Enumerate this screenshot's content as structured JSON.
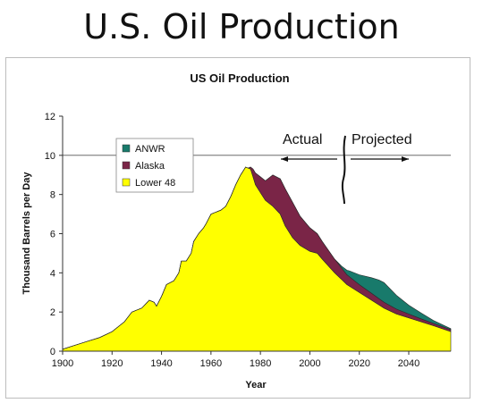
{
  "slide": {
    "title": "U.S. Oil Production"
  },
  "chart_data": {
    "type": "area",
    "stacked": true,
    "title": "US Oil Production",
    "xlabel": "Year",
    "ylabel": "Thousand Barrels per Day",
    "xlim": [
      1900,
      2057
    ],
    "ylim": [
      0,
      12
    ],
    "xticks": [
      1900,
      1920,
      1940,
      1960,
      1980,
      2000,
      2020,
      2040
    ],
    "yticks": [
      0,
      2,
      4,
      6,
      8,
      10,
      12
    ],
    "reference_line": 10,
    "grid": false,
    "legend_placement": "upper-left",
    "legend": [
      "ANWR",
      "Alaska",
      "Lower 48"
    ],
    "annotations": [
      {
        "text": "Actual",
        "arrow": "left"
      },
      {
        "text": "Projected",
        "arrow": "right"
      }
    ],
    "series": [
      {
        "name": "Lower 48",
        "color": "#ffff00",
        "points": [
          [
            1900,
            0.1
          ],
          [
            1905,
            0.3
          ],
          [
            1910,
            0.5
          ],
          [
            1915,
            0.7
          ],
          [
            1920,
            1.0
          ],
          [
            1925,
            1.5
          ],
          [
            1928,
            2.0
          ],
          [
            1930,
            2.1
          ],
          [
            1932,
            2.2
          ],
          [
            1935,
            2.6
          ],
          [
            1937,
            2.5
          ],
          [
            1938,
            2.3
          ],
          [
            1940,
            2.8
          ],
          [
            1942,
            3.4
          ],
          [
            1945,
            3.6
          ],
          [
            1947,
            4.0
          ],
          [
            1948,
            4.6
          ],
          [
            1950,
            4.6
          ],
          [
            1952,
            5.0
          ],
          [
            1953,
            5.6
          ],
          [
            1955,
            6.0
          ],
          [
            1957,
            6.3
          ],
          [
            1958,
            6.5
          ],
          [
            1960,
            7.0
          ],
          [
            1962,
            7.1
          ],
          [
            1964,
            7.2
          ],
          [
            1966,
            7.4
          ],
          [
            1968,
            7.9
          ],
          [
            1970,
            8.5
          ],
          [
            1972,
            9.0
          ],
          [
            1974,
            9.4
          ],
          [
            1976,
            9.3
          ],
          [
            1978,
            8.5
          ],
          [
            1980,
            8.1
          ],
          [
            1982,
            7.7
          ],
          [
            1985,
            7.4
          ],
          [
            1988,
            7.0
          ],
          [
            1990,
            6.4
          ],
          [
            1993,
            5.8
          ],
          [
            1996,
            5.4
          ],
          [
            2000,
            5.1
          ],
          [
            2003,
            5.0
          ],
          [
            2005,
            4.7
          ],
          [
            2010,
            4.0
          ],
          [
            2015,
            3.4
          ],
          [
            2020,
            3.0
          ],
          [
            2025,
            2.6
          ],
          [
            2030,
            2.2
          ],
          [
            2035,
            1.9
          ],
          [
            2040,
            1.7
          ],
          [
            2045,
            1.5
          ],
          [
            2050,
            1.3
          ],
          [
            2057,
            1.0
          ]
        ]
      },
      {
        "name": "Alaska",
        "color": "#7a2547",
        "points": [
          [
            1900,
            0
          ],
          [
            1975,
            0
          ],
          [
            1976,
            0.1
          ],
          [
            1977,
            0.4
          ],
          [
            1978,
            0.6
          ],
          [
            1980,
            0.8
          ],
          [
            1982,
            1.0
          ],
          [
            1985,
            1.6
          ],
          [
            1988,
            1.8
          ],
          [
            1990,
            1.9
          ],
          [
            1993,
            1.8
          ],
          [
            1996,
            1.5
          ],
          [
            2000,
            1.2
          ],
          [
            2003,
            1.0
          ],
          [
            2005,
            0.9
          ],
          [
            2010,
            0.7
          ],
          [
            2015,
            0.5
          ],
          [
            2020,
            0.4
          ],
          [
            2025,
            0.35
          ],
          [
            2030,
            0.3
          ],
          [
            2035,
            0.25
          ],
          [
            2040,
            0.2
          ],
          [
            2045,
            0.15
          ],
          [
            2050,
            0.12
          ],
          [
            2057,
            0.1
          ]
        ]
      },
      {
        "name": "ANWR",
        "color": "#187a6b",
        "points": [
          [
            1900,
            0
          ],
          [
            2010,
            0
          ],
          [
            2013,
            0.1
          ],
          [
            2016,
            0.3
          ],
          [
            2020,
            0.5
          ],
          [
            2025,
            0.8
          ],
          [
            2028,
            0.95
          ],
          [
            2030,
            1.0
          ],
          [
            2035,
            0.7
          ],
          [
            2040,
            0.45
          ],
          [
            2045,
            0.3
          ],
          [
            2050,
            0.15
          ],
          [
            2057,
            0.05
          ]
        ]
      }
    ]
  }
}
